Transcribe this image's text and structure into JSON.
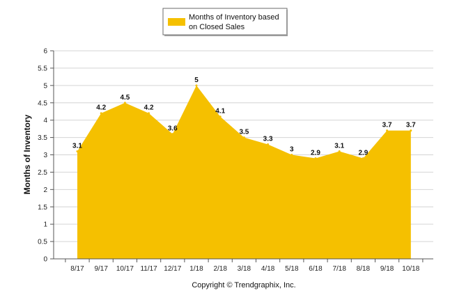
{
  "chart_data": {
    "type": "area",
    "categories": [
      "8/17",
      "9/17",
      "10/17",
      "11/17",
      "12/17",
      "1/18",
      "2/18",
      "3/18",
      "4/18",
      "5/18",
      "6/18",
      "7/18",
      "8/18",
      "9/18",
      "10/18"
    ],
    "series": [
      {
        "name": "Months of Inventory based on Closed Sales",
        "values": [
          3.1,
          4.2,
          4.5,
          4.2,
          3.6,
          5,
          4.1,
          3.5,
          3.3,
          3,
          2.9,
          3.1,
          2.9,
          3.7,
          3.7
        ],
        "data_labels": [
          "3.1",
          "4.2",
          "4.5",
          "4.2",
          "3.6",
          "5",
          "4.1",
          "3.5",
          "3.3",
          "3",
          "2.9",
          "3.1",
          "2.9",
          "3.7",
          "3.7"
        ],
        "color": "#F5C000"
      }
    ],
    "legend": {
      "lines": [
        "Months of Inventory based",
        "on Closed Sales"
      ],
      "placement": "top"
    },
    "xlabel": "",
    "ylabel": "Months of Inventory",
    "ylim": [
      0,
      6
    ],
    "yticks": [
      "0",
      "0.5",
      "1",
      "1.5",
      "2",
      "2.5",
      "3",
      "3.5",
      "4",
      "4.5",
      "5",
      "5.5",
      "6"
    ],
    "grid": true
  },
  "footer": {
    "copyright": "Copyright © Trendgraphix, Inc."
  },
  "colors": {
    "area": "#F5C000",
    "grid": "#d4d4d4",
    "axis": "#555555"
  }
}
